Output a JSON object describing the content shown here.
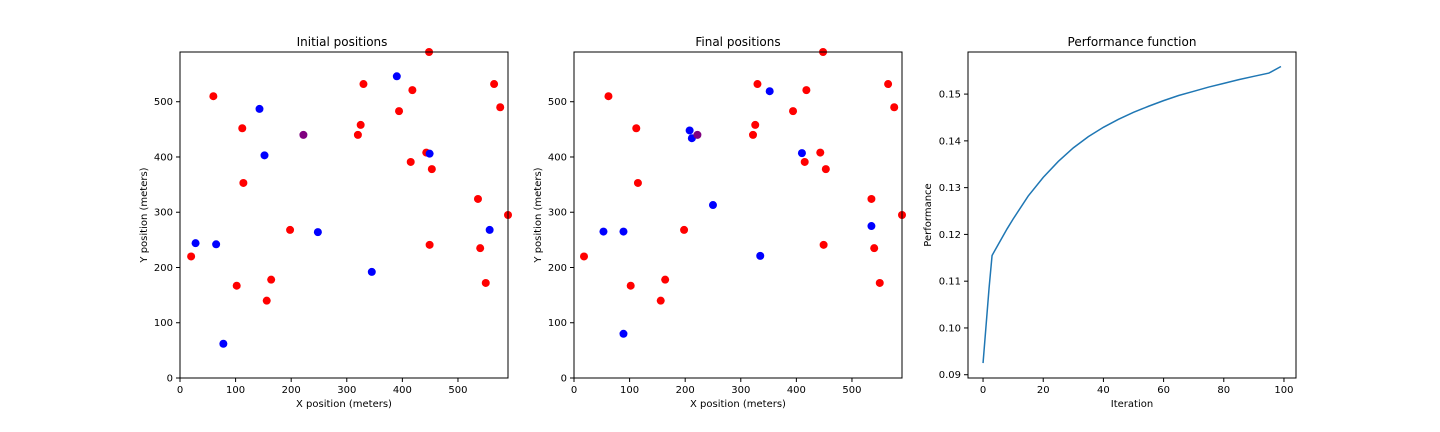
{
  "chart_data": [
    {
      "type": "scatter",
      "title": "Initial positions",
      "xlabel": "X position (meters)",
      "ylabel": "Y position (meters)",
      "xlim": [
        0,
        590
      ],
      "ylim": [
        0,
        590
      ],
      "xticks": [
        0,
        100,
        200,
        300,
        400,
        500
      ],
      "yticks": [
        0,
        100,
        200,
        300,
        400,
        500
      ],
      "grid": false,
      "series": [
        {
          "color": "#ff0000",
          "points": [
            [
              20,
              220
            ],
            [
              60,
              510
            ],
            [
              112,
              452
            ],
            [
              114,
              353
            ],
            [
              102,
              167
            ],
            [
              156,
              140
            ],
            [
              164,
              178
            ],
            [
              198,
              268
            ],
            [
              320,
              440
            ],
            [
              325,
              458
            ],
            [
              330,
              532
            ],
            [
              394,
              483
            ],
            [
              418,
              521
            ],
            [
              415,
              391
            ],
            [
              443,
              408
            ],
            [
              448,
              590
            ],
            [
              453,
              378
            ],
            [
              449,
              241
            ],
            [
              536,
              324
            ],
            [
              540,
              235
            ],
            [
              550,
              172
            ],
            [
              565,
              532
            ],
            [
              576,
              490
            ],
            [
              590,
              295
            ]
          ]
        },
        {
          "color": "#0000ff",
          "points": [
            [
              28,
              244
            ],
            [
              65,
              242
            ],
            [
              78,
              62
            ],
            [
              143,
              487
            ],
            [
              152,
              403
            ],
            [
              248,
              264
            ],
            [
              345,
              192
            ],
            [
              390,
              546
            ],
            [
              449,
              406
            ],
            [
              557,
              268
            ]
          ]
        },
        {
          "color": "#800080",
          "points": [
            [
              222,
              440
            ]
          ]
        }
      ]
    },
    {
      "type": "scatter",
      "title": "Final positions",
      "xlabel": "X position (meters)",
      "ylabel": "Y position (meters)",
      "xlim": [
        0,
        590
      ],
      "ylim": [
        0,
        590
      ],
      "xticks": [
        0,
        100,
        200,
        300,
        400,
        500
      ],
      "yticks": [
        0,
        100,
        200,
        300,
        400,
        500
      ],
      "grid": false,
      "series": [
        {
          "color": "#ff0000",
          "points": [
            [
              18,
              220
            ],
            [
              62,
              510
            ],
            [
              112,
              452
            ],
            [
              115,
              353
            ],
            [
              102,
              167
            ],
            [
              156,
              140
            ],
            [
              164,
              178
            ],
            [
              198,
              268
            ],
            [
              322,
              440
            ],
            [
              326,
              458
            ],
            [
              330,
              532
            ],
            [
              394,
              483
            ],
            [
              418,
              521
            ],
            [
              415,
              391
            ],
            [
              443,
              408
            ],
            [
              448,
              590
            ],
            [
              453,
              378
            ],
            [
              449,
              241
            ],
            [
              535,
              324
            ],
            [
              540,
              235
            ],
            [
              550,
              172
            ],
            [
              565,
              532
            ],
            [
              576,
              490
            ],
            [
              590,
              295
            ]
          ]
        },
        {
          "color": "#0000ff",
          "points": [
            [
              53,
              265
            ],
            [
              89,
              265
            ],
            [
              89,
              80
            ],
            [
              208,
              448
            ],
            [
              212,
              434
            ],
            [
              250,
              313
            ],
            [
              335,
              221
            ],
            [
              352,
              519
            ],
            [
              410,
              407
            ],
            [
              535,
              275
            ]
          ]
        },
        {
          "color": "#800080",
          "points": [
            [
              222,
              440
            ]
          ]
        }
      ]
    },
    {
      "type": "line",
      "title": "Performance function",
      "xlabel": "Iteration",
      "ylabel": "Performance",
      "xlim": [
        -5,
        104
      ],
      "ylim": [
        0.0893,
        0.159
      ],
      "xticks": [
        0,
        20,
        40,
        60,
        80,
        100
      ],
      "yticks": [
        0.09,
        0.1,
        0.11,
        0.12,
        0.13,
        0.14,
        0.15
      ],
      "ytick_labels": [
        "0.09",
        "0.10",
        "0.11",
        "0.12",
        "0.13",
        "0.14",
        "0.15"
      ],
      "grid": false,
      "series": [
        {
          "color": "#1f77b4",
          "points": [
            [
              0,
              0.0925
            ],
            [
              1,
              0.1005
            ],
            [
              2,
              0.1085
            ],
            [
              3,
              0.1155
            ],
            [
              5,
              0.1178
            ],
            [
              8,
              0.1212
            ],
            [
              10,
              0.1233
            ],
            [
              15,
              0.1282
            ],
            [
              20,
              0.1322
            ],
            [
              25,
              0.1356
            ],
            [
              30,
              0.1385
            ],
            [
              35,
              0.1409
            ],
            [
              40,
              0.1429
            ],
            [
              45,
              0.1446
            ],
            [
              50,
              0.1461
            ],
            [
              55,
              0.1474
            ],
            [
              60,
              0.1486
            ],
            [
              65,
              0.1497
            ],
            [
              70,
              0.1506
            ],
            [
              75,
              0.1515
            ],
            [
              80,
              0.1523
            ],
            [
              85,
              0.1531
            ],
            [
              90,
              0.1538
            ],
            [
              95,
              0.1545
            ],
            [
              99,
              0.1559
            ]
          ]
        }
      ]
    }
  ]
}
